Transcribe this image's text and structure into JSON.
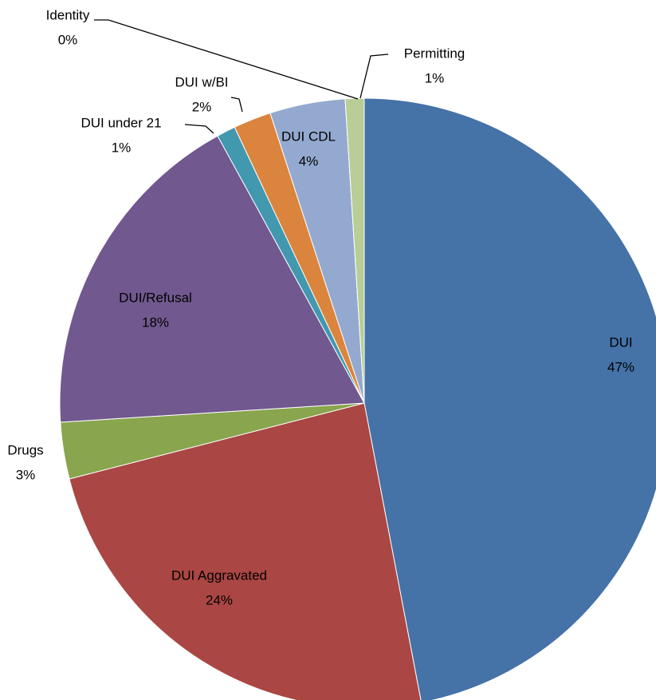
{
  "chart_data": {
    "type": "pie",
    "categories": [
      "DUI",
      "DUI Aggravated",
      "Drugs",
      "DUI/Refusal",
      "DUI under 21",
      "DUI w/BI",
      "DUI CDL",
      "Identity",
      "Permitting"
    ],
    "values": [
      47,
      24,
      3,
      18,
      1,
      2,
      4,
      0,
      1
    ],
    "value_labels": [
      "47%",
      "24%",
      "3%",
      "18%",
      "1%",
      "2%",
      "4%",
      "0%",
      "1%"
    ],
    "colors": [
      "#4572a7",
      "#aa4643",
      "#89a54e",
      "#71588f",
      "#4198af",
      "#db843d",
      "#93a9cf",
      "#d19392",
      "#b9cd96"
    ]
  }
}
